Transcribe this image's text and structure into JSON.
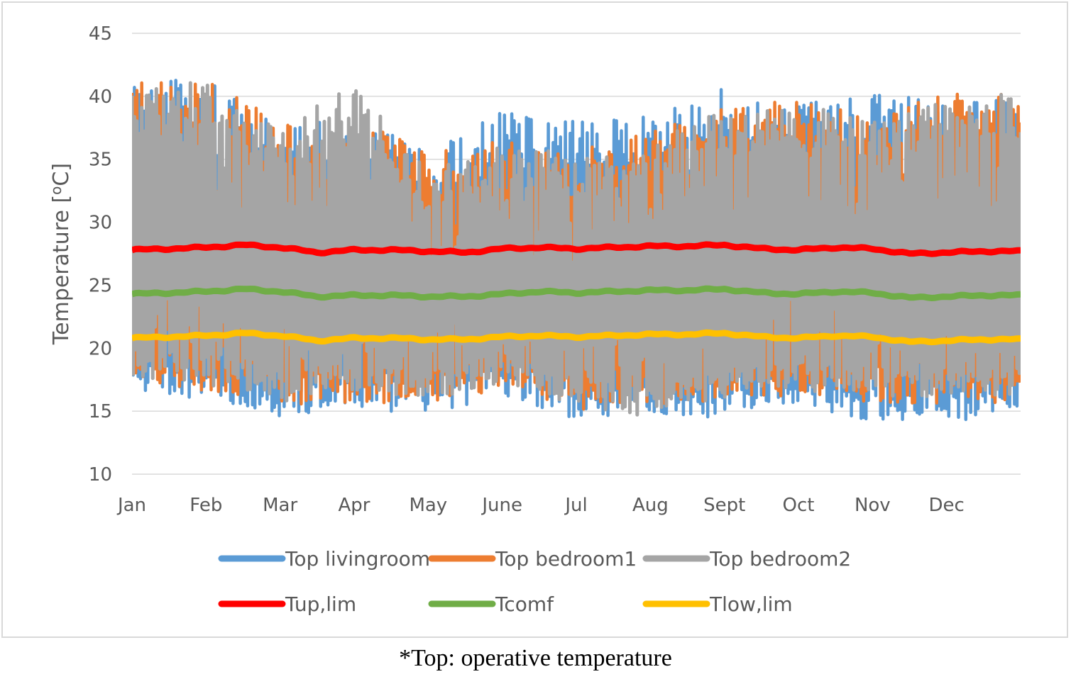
{
  "chart_data": {
    "type": "line",
    "ylabel": "Temperature [oC]",
    "ylim": [
      10,
      45
    ],
    "yticks": [
      10,
      15,
      20,
      25,
      30,
      35,
      40,
      45
    ],
    "categories": [
      "Jan",
      "Feb",
      "Mar",
      "Apr",
      "May",
      "June",
      "Jul",
      "Aug",
      "Sept",
      "Oct",
      "Nov",
      "Dec"
    ],
    "grid": true,
    "legend_position": "bottom",
    "series": [
      {
        "name": "Top livingroom",
        "color": "#5b9bd5",
        "monthly_max": [
          41.3,
          41.5,
          37.5,
          38.6,
          35.8,
          38.8,
          38.4,
          38.9,
          40.6,
          39.8,
          40.2,
          40.2
        ],
        "monthly_min": [
          17.2,
          16.3,
          15.1,
          15.6,
          15.3,
          16.7,
          14.8,
          15.2,
          15.0,
          16.0,
          14.5,
          14.8
        ]
      },
      {
        "name": "Top bedroom1",
        "color": "#ed7d31",
        "monthly_max": [
          41.5,
          41.7,
          37.8,
          38.4,
          35.5,
          36.5,
          35.7,
          37.2,
          39.3,
          40.0,
          38.5,
          40.6
        ],
        "monthly_min": [
          18.0,
          17.0,
          15.8,
          16.2,
          16.0,
          17.3,
          15.6,
          16.0,
          16.3,
          16.8,
          16.2,
          16.1
        ]
      },
      {
        "name": "Top bedroom2",
        "color": "#a5a5a5",
        "monthly_max": [
          41.0,
          41.2,
          37.5,
          41.0,
          34.5,
          36.0,
          35.5,
          36.8,
          39.0,
          39.5,
          38.2,
          40.2
        ],
        "monthly_min": [
          18.3,
          17.4,
          16.2,
          16.6,
          16.4,
          17.8,
          16.0,
          14.8,
          16.6,
          17.2,
          16.6,
          16.5
        ]
      },
      {
        "name": "Tup,lim",
        "color": "#ff0000",
        "x": [
          0,
          0.5,
          1,
          1.5,
          2,
          2.5,
          3,
          3.5,
          4,
          4.5,
          5,
          5.5,
          6,
          6.5,
          7,
          7.5,
          8,
          8.5,
          9,
          9.5,
          10,
          10.5,
          11,
          11.5
        ],
        "values": [
          27.8,
          27.9,
          28.0,
          28.2,
          28.0,
          27.6,
          27.8,
          27.8,
          27.7,
          27.6,
          27.9,
          28.0,
          27.9,
          28.0,
          28.1,
          28.1,
          28.2,
          27.9,
          27.8,
          28.0,
          27.9,
          27.5,
          27.6,
          27.7
        ]
      },
      {
        "name": "Tcomf",
        "color": "#70ad47",
        "x": [
          0,
          0.5,
          1,
          1.5,
          2,
          2.5,
          3,
          3.5,
          4,
          4.5,
          5,
          5.5,
          6,
          6.5,
          7,
          7.5,
          8,
          8.5,
          9,
          9.5,
          10,
          10.5,
          11,
          11.5
        ],
        "values": [
          24.3,
          24.4,
          24.5,
          24.7,
          24.5,
          24.1,
          24.2,
          24.2,
          24.1,
          24.1,
          24.3,
          24.5,
          24.4,
          24.5,
          24.6,
          24.6,
          24.7,
          24.4,
          24.3,
          24.5,
          24.4,
          24.0,
          24.1,
          24.2
        ]
      },
      {
        "name": "Tlow,lim",
        "color": "#ffc000",
        "x": [
          0,
          0.5,
          1,
          1.5,
          2,
          2.5,
          3,
          3.5,
          4,
          4.5,
          5,
          5.5,
          6,
          6.5,
          7,
          7.5,
          8,
          8.5,
          9,
          9.5,
          10,
          10.5,
          11,
          11.5
        ],
        "values": [
          20.8,
          20.9,
          21.0,
          21.2,
          21.0,
          20.6,
          20.8,
          20.8,
          20.7,
          20.7,
          20.9,
          21.0,
          20.9,
          21.0,
          21.1,
          21.1,
          21.2,
          20.9,
          20.8,
          21.0,
          20.9,
          20.5,
          20.6,
          20.7
        ]
      }
    ]
  },
  "footnote": "*Top: operative temperature"
}
